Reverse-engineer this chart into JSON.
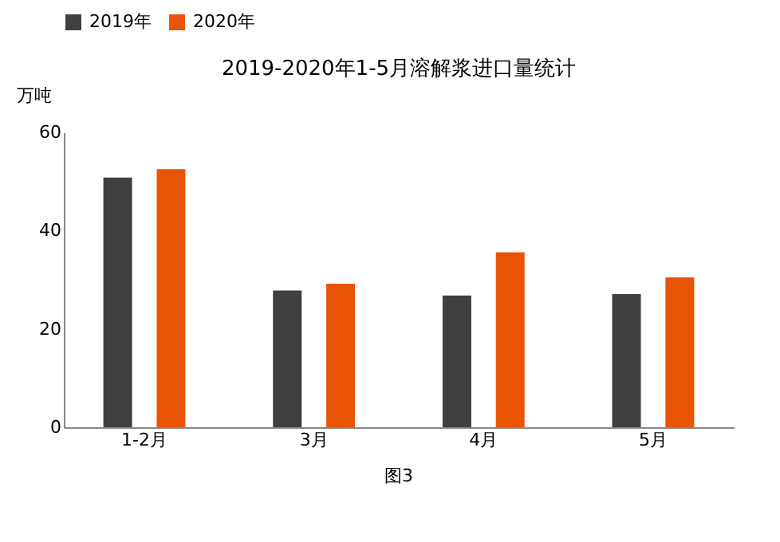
{
  "chart_data": {
    "type": "bar",
    "title": "2019-2020年1-5月溶解浆进口量统计",
    "ylabel": "万吨",
    "categories": [
      "1-2月",
      "3月",
      "4月",
      "5月"
    ],
    "series": [
      {
        "name": "2019年",
        "color": "#404040",
        "values": [
          50.8,
          27.8,
          26.8,
          27.1
        ]
      },
      {
        "name": "2020年",
        "color": "#e95506",
        "values": [
          52.5,
          29.2,
          35.6,
          30.5
        ]
      }
    ],
    "ylim": [
      0,
      60
    ],
    "yticks": [
      0,
      20,
      40,
      60
    ],
    "grid": false,
    "legend": "top",
    "annotations": [
      "图3"
    ]
  }
}
